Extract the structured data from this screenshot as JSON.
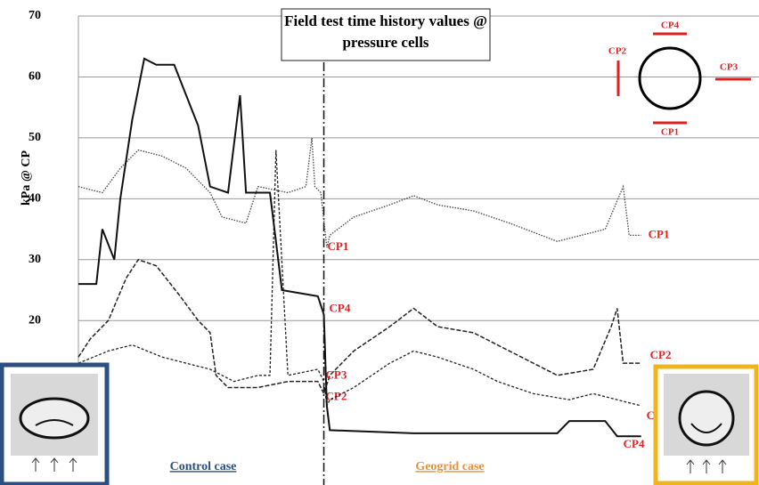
{
  "chart_data": {
    "type": "line",
    "title": "Field test time history values @ pressure cells",
    "y_label": "kPa @ CP",
    "annotations": [
      "Control case",
      "Geogrid case"
    ],
    "xlim": [
      0,
      100
    ],
    "ylim": [
      -7,
      70
    ],
    "yticks": [
      20,
      30,
      40,
      50,
      60,
      70
    ],
    "grid": true,
    "divider_x": 41,
    "series": [
      {
        "name": "CP1",
        "color": "#444444",
        "style": "dotted",
        "x": [
          0,
          4,
          7,
          10,
          14,
          18,
          22,
          24,
          28,
          30,
          35,
          38,
          39,
          39.5,
          40.5,
          41.5,
          42,
          46,
          52,
          56,
          60,
          66,
          72,
          80,
          84,
          88,
          91,
          92,
          94
        ],
        "values": [
          42,
          41,
          45,
          48,
          47,
          45,
          41,
          37,
          36,
          42,
          41,
          42,
          50,
          42,
          41,
          32,
          34,
          37,
          39,
          40.5,
          39,
          38,
          36,
          33,
          34,
          35,
          42,
          34,
          34
        ]
      },
      {
        "name": "CP2",
        "color": "#222222",
        "style": "dashed",
        "x": [
          0,
          2,
          5,
          8,
          10,
          13,
          17,
          20,
          22,
          23,
          25,
          30,
          35,
          40,
          41,
          42,
          46,
          52,
          56,
          60,
          66,
          72,
          76,
          80,
          86,
          89,
          90,
          91,
          94
        ],
        "values": [
          14,
          17,
          20,
          27,
          30,
          29,
          24,
          20,
          18,
          11,
          9,
          9,
          10,
          10,
          8,
          11,
          15,
          19,
          22,
          19,
          18,
          15,
          13,
          11,
          12,
          19,
          22,
          13,
          13
        ]
      },
      {
        "name": "CP3",
        "color": "#222222",
        "style": "dash",
        "x": [
          0,
          5,
          9,
          14,
          18,
          22,
          26,
          30,
          32,
          33,
          35,
          40,
          41,
          41.5,
          42,
          46,
          52,
          56,
          60,
          66,
          70,
          76,
          82,
          86,
          90,
          94
        ],
        "values": [
          13,
          15,
          16,
          14,
          13,
          12,
          10,
          11,
          11,
          48,
          11,
          12,
          10,
          6,
          7,
          9,
          13,
          15,
          14,
          12,
          10,
          8,
          7,
          8,
          7,
          6
        ]
      },
      {
        "name": "CP4",
        "color": "#111111",
        "style": "solid",
        "x": [
          0,
          3,
          4,
          6,
          7,
          9,
          11,
          13,
          16,
          18,
          20,
          22,
          25,
          27,
          28,
          29,
          32,
          34,
          40,
          41,
          41.5,
          42,
          56,
          70,
          80,
          82,
          88,
          90,
          94
        ],
        "values": [
          26,
          26,
          35,
          30,
          40,
          53,
          63,
          62,
          62,
          57,
          52,
          42,
          41,
          57,
          41,
          41,
          41,
          25,
          24,
          21,
          6,
          2,
          1.5,
          1.5,
          1.5,
          3.5,
          3.5,
          1,
          1
        ]
      }
    ]
  }
}
